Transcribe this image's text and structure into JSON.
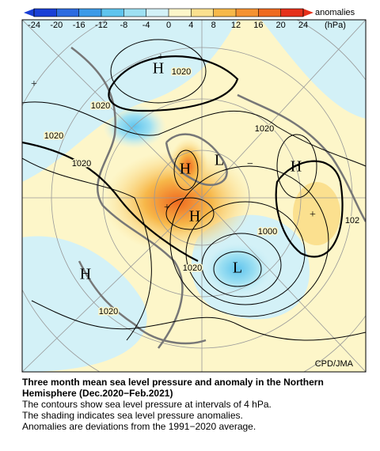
{
  "colorbar": {
    "ticks": [
      -24,
      -20,
      -16,
      -12,
      -8,
      -4,
      0,
      4,
      8,
      12,
      16,
      20,
      24
    ],
    "label": "anomalies",
    "unit": "(hPa)",
    "colors": [
      "#1a3fd6",
      "#2d6be0",
      "#3d9ae8",
      "#5fc4ee",
      "#9ee0f2",
      "#d3f1f7",
      "#fdf6c9",
      "#fbe08f",
      "#f7b84a",
      "#f59232",
      "#ef6a1f",
      "#e6301a"
    ]
  },
  "map": {
    "contour_labels": [
      "1020",
      "1020",
      "1020",
      "1020",
      "1020",
      "1020",
      "1020",
      "1000",
      "102"
    ],
    "pressure_centers": [
      "H",
      "H",
      "H",
      "H",
      "H",
      "L",
      "L",
      "+",
      "+",
      "+",
      "+",
      "−"
    ],
    "credit": "CPD/JMA"
  },
  "caption": {
    "title": "Three month mean sea level pressure and anomaly in the Northern Hemisphere (Dec.2020−Feb.2021)",
    "lines": [
      "The contours show sea level pressure at intervals of 4 hPa.",
      "The shading indicates sea level pressure anomalies.",
      "Anomalies are deviations from the 1991−2020 average."
    ]
  }
}
